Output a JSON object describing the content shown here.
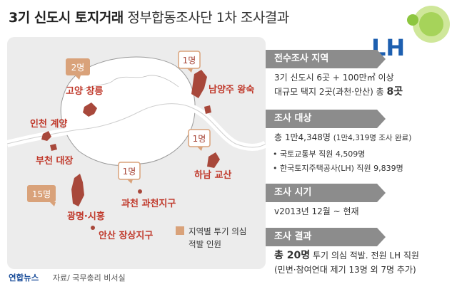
{
  "title": {
    "main": "3기 신도시 토지거래",
    "sub": "정부합동조사단 1차 조사결과"
  },
  "logo": {
    "text": "LH"
  },
  "map": {
    "badges": [
      {
        "id": "goyang",
        "count": "2명"
      },
      {
        "id": "namyangju",
        "count": "1명"
      },
      {
        "id": "hanam",
        "count": "1명"
      },
      {
        "id": "gwacheon",
        "count": "1명"
      },
      {
        "id": "gwangmyeong",
        "count": "15명"
      }
    ],
    "places": {
      "goyang": "고양 창릉",
      "namyangju": "남양주 왕숙",
      "incheon": "인천 계양",
      "bucheon": "부천 대장",
      "hanam": "하남 교산",
      "gwacheon": "과천 과천지구",
      "gwangmyeong": "광명·시흥",
      "ansan": "안산 장상지구"
    },
    "legend": {
      "line1": "지역별 투기 의심",
      "line2": "적발 인원"
    }
  },
  "sections": {
    "s1": {
      "header": "전수조사 지역",
      "line1": "3기 신도시 6곳 + 100만㎡ 이상",
      "line2a": "대규모 택지 2곳(과천·안산) 총 ",
      "line2b": "8곳"
    },
    "s2": {
      "header": "조사 대상",
      "line1a": "총 1만4,348명 ",
      "line1b": "(1만4,319명 조사 완료)",
      "b1": "• 국토교통부 직원 4,509명",
      "b2": "• 한국토지주택공사(LH) 직원 9,839명"
    },
    "s3": {
      "header": "조사 시기",
      "line1": "v2013년 12월 ~ 현재"
    },
    "s4": {
      "header": "조사 결과",
      "line1a": "총 20명",
      "line1b": " 투기 의심 적발. 전원 LH 직원",
      "line2": "(민변·참여연대 제기 13명 외 7명 추가)"
    }
  },
  "footer": {
    "brand": "연합뉴스",
    "source": "자료/ 국무총리 비서실"
  },
  "colors": {
    "accent": "#c0392b",
    "badge": "#d9a27a",
    "region": "#a8483b",
    "header_bg": "#8c8c8c",
    "logo_blue": "#1d5fb0",
    "logo_green": "#8dc63f"
  }
}
